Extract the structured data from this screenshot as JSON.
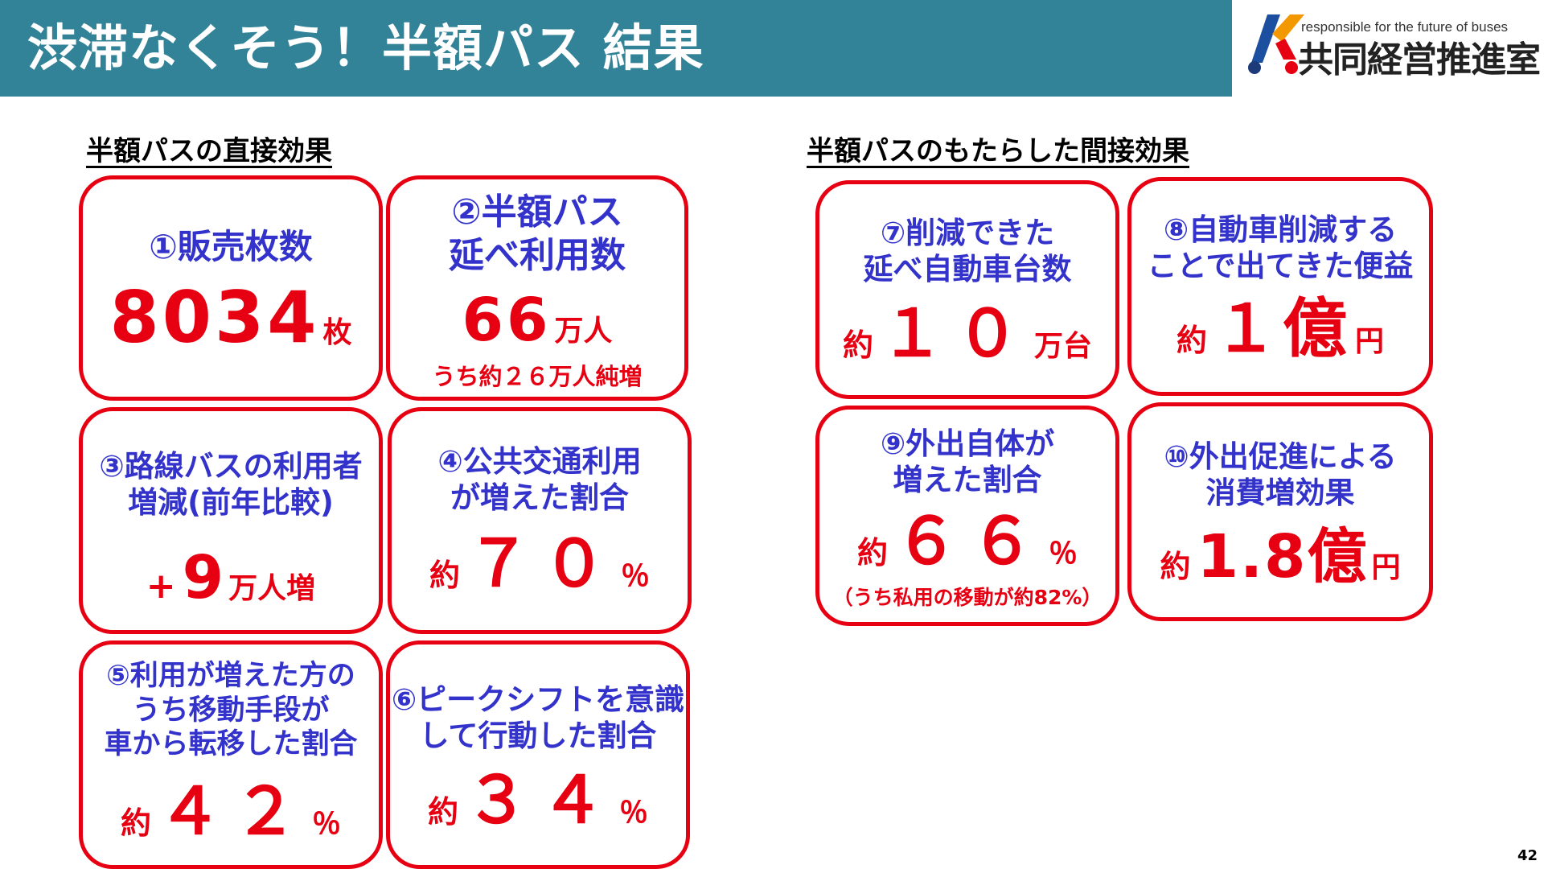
{
  "header": {
    "title": "渋滞なくそう！半額パス 結果",
    "logo_tagline": "responsible for the future of buses",
    "logo_name": "共同経営推進室"
  },
  "colors": {
    "header_bg": "#338398",
    "card_border": "#e60012",
    "title_text": "#3333cc",
    "value_text": "#e60012"
  },
  "sections": {
    "direct": "半額パスの直接効果",
    "indirect": "半額パスのもたらした間接効果"
  },
  "cards": {
    "c1": {
      "title": [
        "①販売枚数"
      ],
      "prefix": "",
      "value": "8034",
      "unit": "枚",
      "note": ""
    },
    "c2": {
      "title": [
        "②半額パス",
        "延べ利用数"
      ],
      "prefix": "",
      "value": "66",
      "unit": "万人",
      "note": "うち約２６万人純増"
    },
    "c3": {
      "title": [
        "③路線バスの利用者",
        "増減(前年比較)"
      ],
      "prefix": "+",
      "value": "9",
      "unit": "万人増",
      "note": ""
    },
    "c4": {
      "title": [
        "④公共交通利用",
        "が増えた割合"
      ],
      "prefix": "約",
      "value": "７０",
      "unit": "％",
      "note": ""
    },
    "c5": {
      "title": [
        "⑤利用が増えた方の",
        "うち移動手段が",
        "車から転移した割合"
      ],
      "prefix": "約",
      "value": "４２",
      "unit": "％",
      "note": ""
    },
    "c6": {
      "title": [
        "⑥ピークシフトを意識",
        "して行動した割合"
      ],
      "prefix": "約",
      "value": "３４",
      "unit": "％",
      "note": ""
    },
    "c7": {
      "title": [
        "⑦削減できた",
        "延べ自動車台数"
      ],
      "prefix": "約",
      "value": "１０",
      "unit": "万台",
      "note": ""
    },
    "c8": {
      "title": [
        "⑧自動車削減する",
        "ことで出てきた便益"
      ],
      "prefix": "約",
      "value": "１億",
      "unit": "円",
      "note": ""
    },
    "c9": {
      "title": [
        "⑨外出自体が",
        "増えた割合"
      ],
      "prefix": "約",
      "value": "６６",
      "unit": "％",
      "note": "（うち私用の移動が約82%）"
    },
    "c10": {
      "title": [
        "⑩外出促進による",
        "消費増効果"
      ],
      "prefix": "約",
      "value": "1.8億",
      "unit": "円",
      "note": ""
    }
  },
  "page_number": "42"
}
